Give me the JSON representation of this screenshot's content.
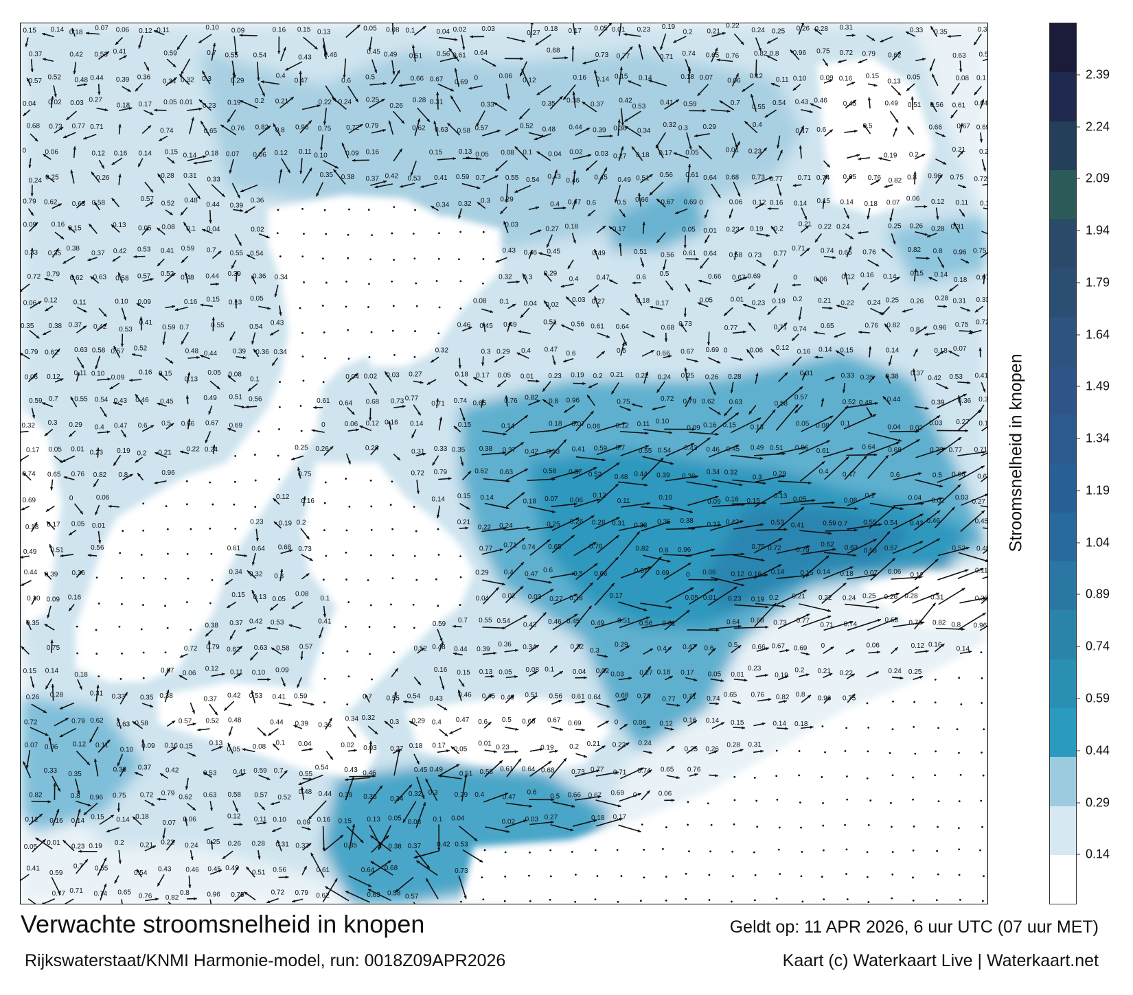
{
  "title": "Verwachte stroomsnelheid in knopen",
  "source": "Rijkswaterstaat/KNMI Harmonie-model, run: 0018Z09APR2026",
  "valid_time": "Geldt op: 11 APR 2026, 6 uur UTC (07 uur MET)",
  "credit": "Kaart (c) Waterkaart Live | Waterkaart.net",
  "colorbar": {
    "label": "Stroomsnelheid in knopen",
    "ticks": [
      "0.14",
      "0.29",
      "0.44",
      "0.59",
      "0.74",
      "0.89",
      "1.04",
      "1.19",
      "1.34",
      "1.49",
      "1.64",
      "1.79",
      "1.94",
      "2.09",
      "2.24",
      "2.39"
    ],
    "range": [
      0,
      2.54
    ],
    "colors": [
      "#ffffff",
      "#d6e8f2",
      "#9ccbe0",
      "#2a9bbf",
      "#2b8fb3",
      "#2a84aa",
      "#2b77a4",
      "#28699e",
      "#2a5f96",
      "#2d5a8e",
      "#2f5488",
      "#2e5380",
      "#2c4e73",
      "#2b4a6a",
      "#2c5a59",
      "#233f5a",
      "#1f2a4e",
      "#1b1b3a"
    ]
  },
  "speed_labels": [
    {
      "v": "0.15"
    },
    {
      "v": "0.14"
    },
    {
      "v": "0.18"
    },
    {
      "v": "0.07"
    },
    {
      "v": "0.06"
    },
    {
      "v": "0.12"
    },
    {
      "v": "0.11"
    },
    {
      "v": "0.10"
    },
    {
      "v": "0.09"
    },
    {
      "v": "0.16"
    },
    {
      "v": "0.15"
    },
    {
      "v": "0.13"
    },
    {
      "v": "0.05"
    },
    {
      "v": "0.08"
    },
    {
      "v": "0.1"
    },
    {
      "v": "0.04"
    },
    {
      "v": "0.02"
    },
    {
      "v": "0.03"
    },
    {
      "v": "0.27"
    },
    {
      "v": "0.18"
    },
    {
      "v": "0.17"
    },
    {
      "v": "0.05"
    },
    {
      "v": "0.01"
    },
    {
      "v": "0.23"
    },
    {
      "v": "0.19"
    },
    {
      "v": "0.2"
    },
    {
      "v": "0.21"
    },
    {
      "v": "0.22"
    },
    {
      "v": "0.24"
    },
    {
      "v": "0.25"
    },
    {
      "v": "0.26"
    },
    {
      "v": "0.28"
    },
    {
      "v": "0.31"
    },
    {
      "v": "0.33"
    },
    {
      "v": "0.35"
    },
    {
      "v": "0.38"
    },
    {
      "v": "0.37"
    },
    {
      "v": "0.42"
    },
    {
      "v": "0.53"
    },
    {
      "v": "0.41"
    },
    {
      "v": "0.59"
    },
    {
      "v": "0.7"
    },
    {
      "v": "0.55"
    },
    {
      "v": "0.54"
    },
    {
      "v": "0.43"
    },
    {
      "v": "0.46"
    },
    {
      "v": "0.45"
    },
    {
      "v": "0.49"
    },
    {
      "v": "0.51"
    },
    {
      "v": "0.56"
    },
    {
      "v": "0.61"
    },
    {
      "v": "0.64"
    },
    {
      "v": "0.68"
    },
    {
      "v": "0.73"
    },
    {
      "v": "0.77"
    },
    {
      "v": "0.71"
    },
    {
      "v": "0.74"
    },
    {
      "v": "0.65"
    },
    {
      "v": "0.76"
    },
    {
      "v": "0.82"
    },
    {
      "v": "0.8"
    },
    {
      "v": "0.96"
    },
    {
      "v": "0.75"
    },
    {
      "v": "0.72"
    },
    {
      "v": "0.79"
    },
    {
      "v": "0.62"
    },
    {
      "v": "0.63"
    },
    {
      "v": "0.58"
    },
    {
      "v": "0.57"
    },
    {
      "v": "0.52"
    },
    {
      "v": "0.48"
    },
    {
      "v": "0.44"
    },
    {
      "v": "0.39"
    },
    {
      "v": "0.36"
    },
    {
      "v": "0.34"
    },
    {
      "v": "0.32"
    },
    {
      "v": "0.3"
    },
    {
      "v": "0.29"
    },
    {
      "v": "0.4"
    },
    {
      "v": "0.47"
    },
    {
      "v": "0.6"
    },
    {
      "v": "0.5"
    },
    {
      "v": "0.66"
    },
    {
      "v": "0.67"
    },
    {
      "v": "0.69"
    },
    {
      "v": "0"
    },
    {
      "v": "0.06"
    },
    {
      "v": "0.12"
    },
    {
      "v": "0.16"
    },
    {
      "v": "0.14"
    }
  ]
}
